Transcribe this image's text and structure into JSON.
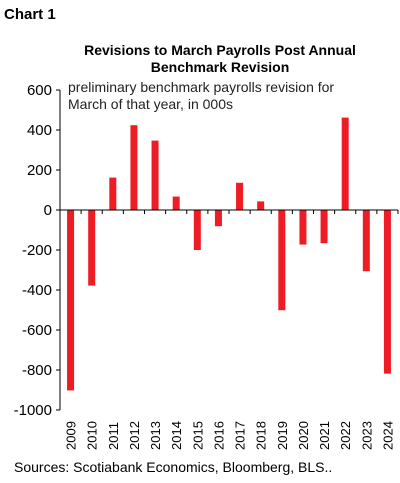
{
  "header": {
    "label": "Chart 1"
  },
  "chart_data": {
    "type": "bar",
    "title": "Revisions to March Payrolls Post Annual Benchmark Revision",
    "title_lines": [
      "Revisions to March Payrolls Post Annual",
      "Benchmark Revision"
    ],
    "annotation_lines": [
      "preliminary benchmark payrolls revision for",
      "March of that year, in 000s"
    ],
    "categories": [
      "2009",
      "2010",
      "2011",
      "2012",
      "2013",
      "2014",
      "2015",
      "2016",
      "2017",
      "2018",
      "2019",
      "2020",
      "2021",
      "2022",
      "2023",
      "2024"
    ],
    "values": [
      -902,
      -378,
      162,
      424,
      347,
      67,
      -200,
      -81,
      136,
      43,
      -501,
      -173,
      -166,
      462,
      -306,
      -818
    ],
    "yticks": [
      600,
      400,
      200,
      0,
      -200,
      -400,
      -600,
      -800,
      -1000
    ],
    "ylim": [
      -1000,
      600
    ],
    "grid": false,
    "colors": {
      "bar": "#ee1c25",
      "axis": "#000000"
    }
  },
  "footer": {
    "source": "Sources: Scotiabank Economics, Bloomberg, BLS.."
  }
}
